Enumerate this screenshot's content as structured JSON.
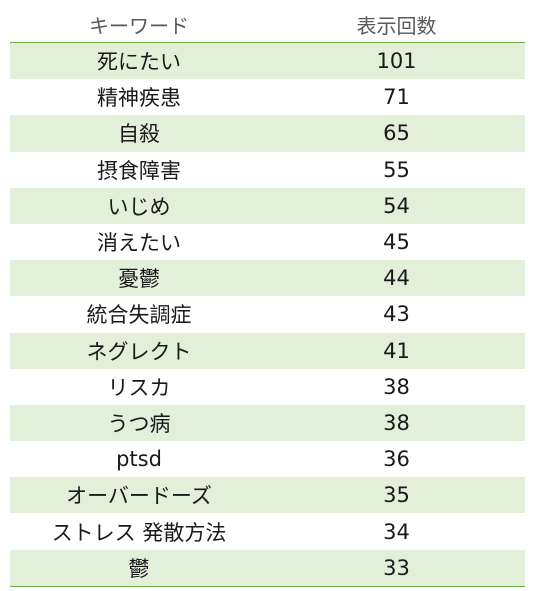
{
  "table": {
    "headers": {
      "keyword": "キーワード",
      "count": "表示回数"
    },
    "rows": [
      {
        "keyword": "死にたい",
        "count": "101"
      },
      {
        "keyword": "精神疾患",
        "count": "71"
      },
      {
        "keyword": "自殺",
        "count": "65"
      },
      {
        "keyword": "摂食障害",
        "count": "55"
      },
      {
        "keyword": "いじめ",
        "count": "54"
      },
      {
        "keyword": "消えたい",
        "count": "45"
      },
      {
        "keyword": "憂鬱",
        "count": "44"
      },
      {
        "keyword": "統合失調症",
        "count": "43"
      },
      {
        "keyword": "ネグレクト",
        "count": "41"
      },
      {
        "keyword": "リスカ",
        "count": "38"
      },
      {
        "keyword": "うつ病",
        "count": "38"
      },
      {
        "keyword": "ptsd",
        "count": "36"
      },
      {
        "keyword": "オーバードーズ",
        "count": "35"
      },
      {
        "keyword": "ストレス 発散方法",
        "count": "34"
      },
      {
        "keyword": "鬱",
        "count": "33"
      }
    ],
    "colors": {
      "border": "#70ad47",
      "band": "#e2efd9",
      "header_text": "#595959"
    }
  }
}
